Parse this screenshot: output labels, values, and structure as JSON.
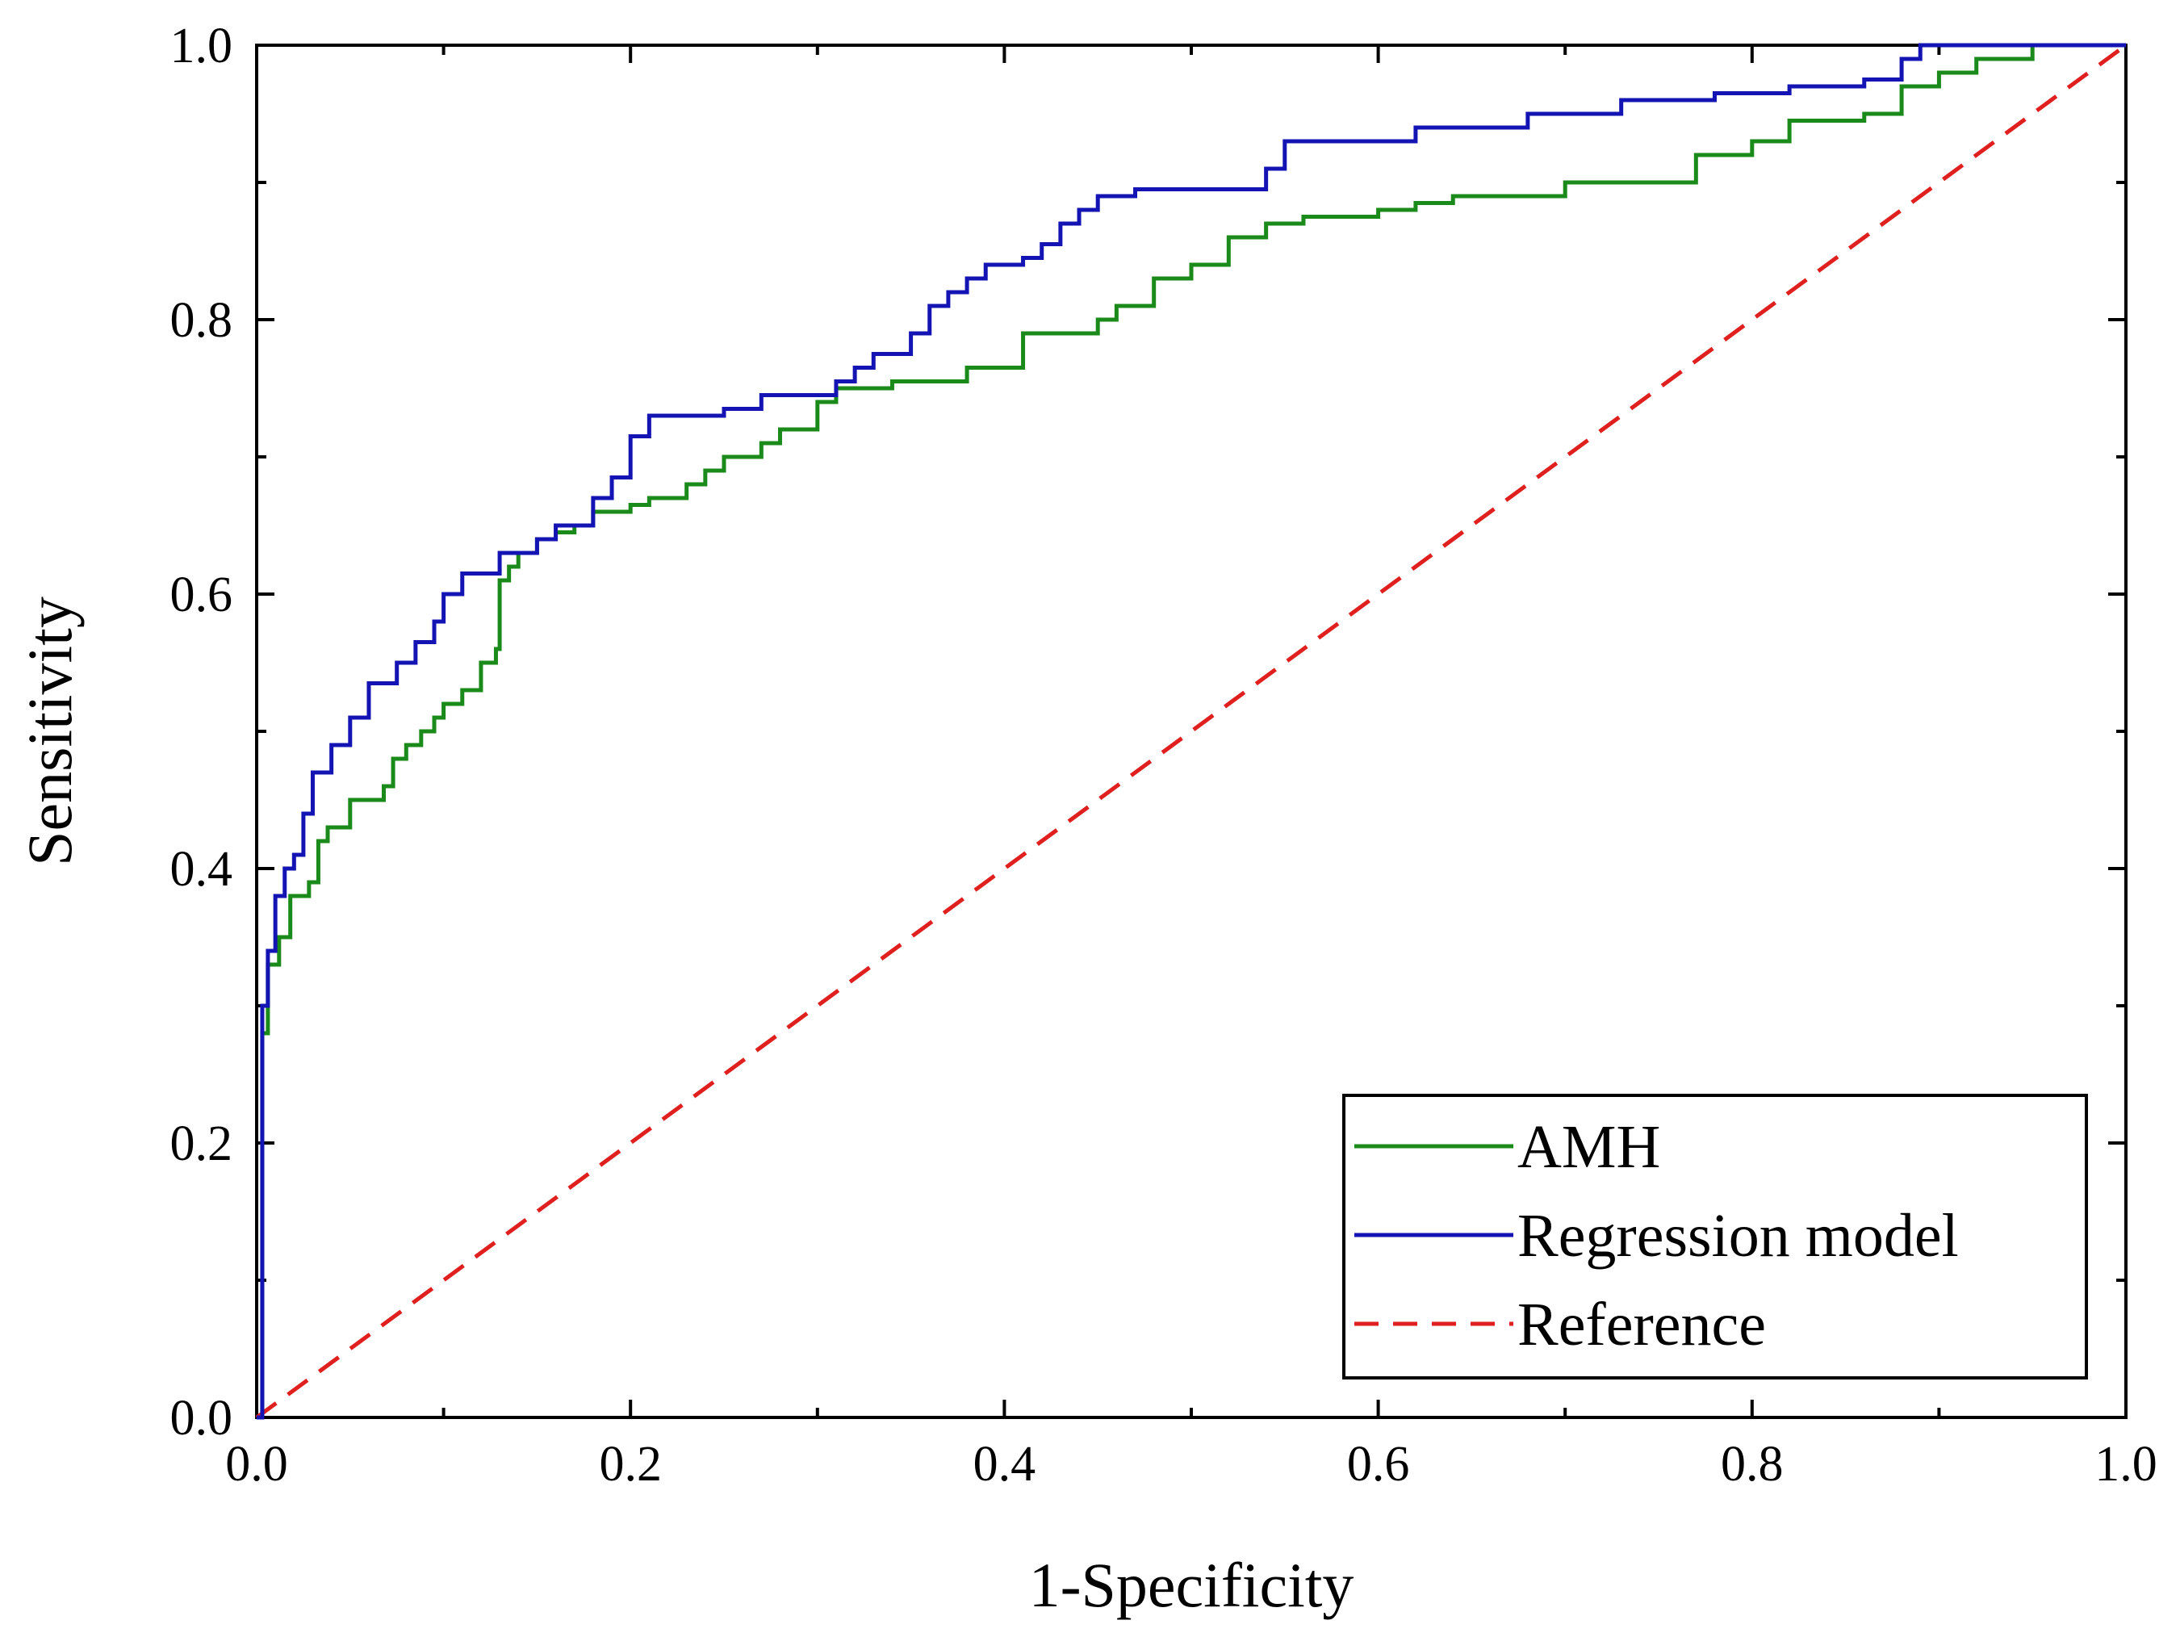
{
  "chart_data": {
    "type": "line",
    "title": "",
    "xlabel": "1-Specificity",
    "ylabel": "Sensitivity",
    "xlim": [
      0,
      1
    ],
    "ylim": [
      0,
      1
    ],
    "x_ticks": [
      "0.0",
      "0.2",
      "0.4",
      "0.6",
      "0.8",
      "1.0"
    ],
    "y_ticks": [
      "0.0",
      "0.2",
      "0.4",
      "0.6",
      "0.8",
      "1.0"
    ],
    "grid": false,
    "legend_position": "bottom-right",
    "series": [
      {
        "name": "AMH",
        "color": "#1a8a1a",
        "style": "solid",
        "x": [
          0,
          0.003,
          0.006,
          0.012,
          0.018,
          0.028,
          0.033,
          0.038,
          0.05,
          0.068,
          0.073,
          0.08,
          0.088,
          0.095,
          0.1,
          0.11,
          0.12,
          0.128,
          0.13,
          0.135,
          0.14,
          0.15,
          0.16,
          0.17,
          0.18,
          0.2,
          0.21,
          0.23,
          0.24,
          0.25,
          0.27,
          0.28,
          0.3,
          0.31,
          0.34,
          0.38,
          0.41,
          0.45,
          0.46,
          0.48,
          0.5,
          0.52,
          0.54,
          0.56,
          0.6,
          0.62,
          0.64,
          0.7,
          0.74,
          0.77,
          0.8,
          0.82,
          0.86,
          0.88,
          0.9,
          0.92,
          0.95,
          1.0
        ],
        "y": [
          0,
          0.28,
          0.33,
          0.35,
          0.38,
          0.39,
          0.42,
          0.43,
          0.45,
          0.46,
          0.48,
          0.49,
          0.5,
          0.51,
          0.52,
          0.53,
          0.55,
          0.56,
          0.61,
          0.62,
          0.63,
          0.64,
          0.645,
          0.65,
          0.66,
          0.665,
          0.67,
          0.68,
          0.69,
          0.7,
          0.71,
          0.72,
          0.74,
          0.75,
          0.755,
          0.765,
          0.79,
          0.8,
          0.81,
          0.83,
          0.84,
          0.86,
          0.87,
          0.875,
          0.88,
          0.885,
          0.89,
          0.9,
          0.9,
          0.92,
          0.93,
          0.945,
          0.95,
          0.97,
          0.98,
          0.99,
          1.0,
          1.0
        ]
      },
      {
        "name": "Regression model",
        "color": "#1414b4",
        "style": "solid",
        "x": [
          0,
          0.003,
          0.006,
          0.01,
          0.015,
          0.02,
          0.025,
          0.03,
          0.04,
          0.05,
          0.06,
          0.075,
          0.085,
          0.095,
          0.1,
          0.11,
          0.13,
          0.15,
          0.16,
          0.18,
          0.19,
          0.2,
          0.21,
          0.25,
          0.27,
          0.31,
          0.32,
          0.33,
          0.35,
          0.36,
          0.37,
          0.38,
          0.39,
          0.41,
          0.42,
          0.43,
          0.44,
          0.45,
          0.47,
          0.54,
          0.55,
          0.62,
          0.68,
          0.73,
          0.78,
          0.82,
          0.86,
          0.88,
          0.89,
          0.92,
          1.0
        ],
        "y": [
          0,
          0.3,
          0.34,
          0.38,
          0.4,
          0.41,
          0.44,
          0.47,
          0.49,
          0.51,
          0.535,
          0.55,
          0.565,
          0.58,
          0.6,
          0.615,
          0.63,
          0.64,
          0.65,
          0.67,
          0.685,
          0.715,
          0.73,
          0.735,
          0.745,
          0.755,
          0.765,
          0.775,
          0.79,
          0.81,
          0.82,
          0.83,
          0.84,
          0.845,
          0.855,
          0.87,
          0.88,
          0.89,
          0.895,
          0.91,
          0.93,
          0.94,
          0.95,
          0.96,
          0.965,
          0.97,
          0.975,
          0.99,
          1.0,
          1.0,
          1.0
        ]
      },
      {
        "name": "Reference",
        "color": "#e01f1f",
        "style": "dashed",
        "x": [
          0,
          1
        ],
        "y": [
          0,
          1
        ]
      }
    ]
  }
}
